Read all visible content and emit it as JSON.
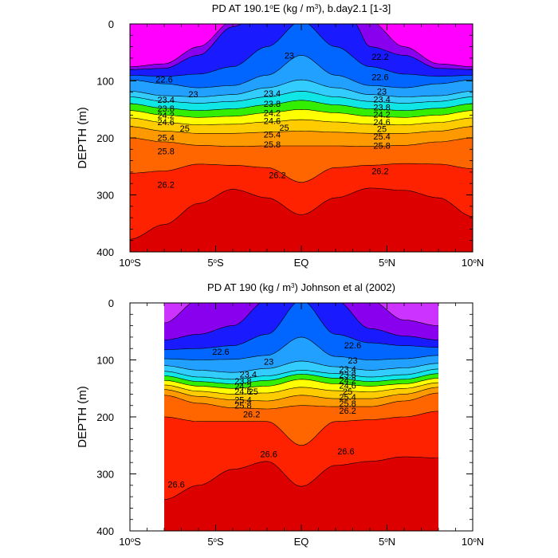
{
  "chart_data": [
    {
      "type": "heatmap",
      "title": "PD AT 190.1°E (kg / m³), b.day2.1 [1-3]",
      "title_parts": {
        "pre": "PD AT 190.1",
        "sup_deg": "o",
        "post": "E (kg / m",
        "sup3": "3",
        "tail": "), b.day2.1 [1-3]"
      },
      "ylabel": "DEPTH (m)",
      "xlim": [
        -10,
        10
      ],
      "ylim": [
        400,
        0
      ],
      "x_ticks": [
        -10,
        -5,
        0,
        5,
        10
      ],
      "x_tick_labels": [
        {
          "num": "10",
          "deg": "o",
          "hem": "S"
        },
        {
          "num": "5",
          "deg": "o",
          "hem": "S"
        },
        {
          "num": "",
          "deg": "",
          "hem": "EQ"
        },
        {
          "num": "5",
          "deg": "o",
          "hem": "N"
        },
        {
          "num": "10",
          "deg": "o",
          "hem": "N"
        }
      ],
      "y_ticks": [
        0,
        100,
        200,
        300,
        400
      ],
      "y_tick_labels": [
        "0",
        "100",
        "200",
        "300",
        "400"
      ],
      "data_extent": [
        -10,
        10
      ],
      "sigma_surface": 21.2,
      "sigma_deep": 26.8,
      "contours": [
        {
          "level": 21.8,
          "s": {
            "10": 75,
            "8": 70,
            "6": 40,
            "4": -5,
            "2": -5,
            "0": -5
          },
          "n": {
            "10": 75,
            "8": 70,
            "6": 40,
            "4": -5,
            "2": -5,
            "0": -5
          }
        },
        {
          "level": 22.2,
          "s": {
            "10": 80,
            "8": 78,
            "6": 55,
            "4": 5,
            "3": -5,
            "2": -5,
            "0": -5
          },
          "n": {
            "10": 80,
            "8": 78,
            "6": 55,
            "4": 40,
            "3": -5,
            "2": -5,
            "0": -5
          }
        },
        {
          "level": 22.6,
          "s": {
            "10": 90,
            "8": 92,
            "6": 88,
            "4": 75,
            "2": 40,
            "0": -5
          },
          "n": {
            "10": 90,
            "8": 92,
            "6": 88,
            "4": 75,
            "2": 40,
            "0": -5
          }
        },
        {
          "level": 23.0,
          "s": {
            "10": 98,
            "8": 105,
            "6": 112,
            "4": 108,
            "2": 90,
            "0": 55
          },
          "n": {
            "10": 98,
            "8": 105,
            "6": 112,
            "4": 108,
            "2": 90,
            "0": 55
          }
        },
        {
          "level": 23.4,
          "s": {
            "10": 118,
            "8": 126,
            "6": 128,
            "4": 124,
            "2": 112,
            "0": 98
          },
          "n": {
            "10": 118,
            "8": 126,
            "6": 128,
            "4": 124,
            "2": 112,
            "0": 98
          }
        },
        {
          "level": 23.8,
          "s": {
            "10": 128,
            "8": 136,
            "6": 139,
            "4": 136,
            "2": 128,
            "0": 118
          },
          "n": {
            "10": 128,
            "8": 136,
            "6": 139,
            "4": 136,
            "2": 128,
            "0": 118
          }
        },
        {
          "level": 24.2,
          "s": {
            "10": 140,
            "8": 148,
            "6": 152,
            "4": 149,
            "2": 142,
            "0": 134
          },
          "n": {
            "10": 140,
            "8": 148,
            "6": 152,
            "4": 149,
            "2": 142,
            "0": 134
          }
        },
        {
          "level": 24.6,
          "s": {
            "10": 152,
            "8": 160,
            "6": 164,
            "4": 162,
            "2": 156,
            "0": 150
          },
          "n": {
            "10": 152,
            "8": 160,
            "6": 164,
            "4": 162,
            "2": 156,
            "0": 150
          }
        },
        {
          "level": 25.0,
          "s": {
            "10": 165,
            "8": 173,
            "6": 177,
            "4": 176,
            "2": 172,
            "0": 168
          },
          "n": {
            "10": 165,
            "8": 173,
            "6": 177,
            "4": 176,
            "2": 172,
            "0": 168
          }
        },
        {
          "level": 25.4,
          "s": {
            "10": 180,
            "8": 188,
            "6": 192,
            "4": 192,
            "2": 190,
            "0": 188
          },
          "n": {
            "10": 180,
            "8": 188,
            "6": 192,
            "4": 192,
            "2": 190,
            "0": 188
          }
        },
        {
          "level": 25.8,
          "s": {
            "10": 200,
            "8": 207,
            "6": 213,
            "4": 215,
            "2": 214,
            "0": 214
          },
          "n": {
            "10": 200,
            "8": 207,
            "6": 213,
            "4": 215,
            "2": 214,
            "0": 214
          }
        },
        {
          "level": 26.2,
          "s": {
            "10": 262,
            "8": 258,
            "6": 246,
            "4": 248,
            "2": 252,
            "0": 278
          },
          "n": {
            "10": 254,
            "8": 246,
            "6": 245,
            "4": 248,
            "2": 252,
            "0": 278
          }
        },
        {
          "level": 26.6,
          "s": {
            "10": 378,
            "8": 352,
            "6": 315,
            "4": 290,
            "2": 305,
            "0": 335
          },
          "n": {
            "10": 338,
            "8": 305,
            "6": 292,
            "4": 288,
            "2": 305,
            "0": 335
          }
        }
      ],
      "labels": [
        {
          "text": "22.6",
          "x": -8.0,
          "y": 97
        },
        {
          "text": "23",
          "x": -6.3,
          "y": 123
        },
        {
          "text": "23",
          "x": -0.7,
          "y": 55
        },
        {
          "text": "22.2",
          "x": 4.6,
          "y": 57
        },
        {
          "text": "22.6",
          "x": 4.6,
          "y": 93
        },
        {
          "text": "23.4",
          "x": -7.9,
          "y": 133
        },
        {
          "text": "23.8",
          "x": -7.9,
          "y": 148
        },
        {
          "text": "24.2",
          "x": -7.9,
          "y": 160
        },
        {
          "text": "24.6",
          "x": -7.9,
          "y": 172
        },
        {
          "text": "23.4",
          "x": -1.7,
          "y": 122
        },
        {
          "text": "23.8",
          "x": -1.7,
          "y": 140
        },
        {
          "text": "24.2",
          "x": -1.7,
          "y": 156
        },
        {
          "text": "24.6",
          "x": -1.7,
          "y": 170
        },
        {
          "text": "23",
          "x": 4.7,
          "y": 118
        },
        {
          "text": "23.4",
          "x": 4.7,
          "y": 132
        },
        {
          "text": "23.8",
          "x": 4.7,
          "y": 146
        },
        {
          "text": "24.2",
          "x": 4.7,
          "y": 159
        },
        {
          "text": "24.6",
          "x": 4.7,
          "y": 172
        },
        {
          "text": "25",
          "x": -6.8,
          "y": 183
        },
        {
          "text": "25",
          "x": -1.0,
          "y": 182
        },
        {
          "text": "25",
          "x": 4.7,
          "y": 184
        },
        {
          "text": "25.4",
          "x": -7.9,
          "y": 199
        },
        {
          "text": "25.4",
          "x": -1.7,
          "y": 194
        },
        {
          "text": "25.4",
          "x": 4.7,
          "y": 197
        },
        {
          "text": "25.8",
          "x": -7.9,
          "y": 223
        },
        {
          "text": "25.8",
          "x": -1.7,
          "y": 211
        },
        {
          "text": "25.8",
          "x": 4.7,
          "y": 213
        },
        {
          "text": "26.2",
          "x": -1.4,
          "y": 265
        },
        {
          "text": "26.2",
          "x": 4.6,
          "y": 258
        },
        {
          "text": "26.2",
          "x": -7.9,
          "y": 282
        }
      ]
    },
    {
      "type": "heatmap",
      "title": "PD AT 190 (kg / m³) Johnson et al (2002)",
      "title_parts": {
        "pre": "PD AT 190 (kg / m",
        "sup_deg": "",
        "post": "",
        "sup3": "3",
        "tail": ") Johnson et al (2002)"
      },
      "ylabel": "DEPTH (m)",
      "xlim": [
        -10,
        10
      ],
      "ylim": [
        400,
        0
      ],
      "x_ticks": [
        -10,
        -5,
        0,
        5,
        10
      ],
      "x_tick_labels": [
        {
          "num": "10",
          "deg": "o",
          "hem": "S"
        },
        {
          "num": "5",
          "deg": "o",
          "hem": "S"
        },
        {
          "num": "",
          "deg": "",
          "hem": "EQ"
        },
        {
          "num": "5",
          "deg": "o",
          "hem": "N"
        },
        {
          "num": "10",
          "deg": "o",
          "hem": "N"
        }
      ],
      "y_ticks": [
        0,
        100,
        200,
        300,
        400
      ],
      "y_tick_labels": [
        "0",
        "100",
        "200",
        "300",
        "400"
      ],
      "data_extent": [
        -8,
        8
      ],
      "sigma_surface": 21.6,
      "sigma_deep": 27.0,
      "contours": [
        {
          "level": 21.8,
          "s": {
            "8": 35,
            "6": -5,
            "4": -5,
            "2": -5,
            "0": -5
          },
          "n": {
            "8": 40,
            "6": 30,
            "4": -5,
            "2": -5,
            "0": -5
          }
        },
        {
          "level": 22.2,
          "s": {
            "8": 65,
            "6": 55,
            "4": 40,
            "2": -5,
            "0": -5
          },
          "n": {
            "8": 65,
            "6": 58,
            "4": 45,
            "2": -5,
            "0": -5
          }
        },
        {
          "level": 22.6,
          "s": {
            "8": 82,
            "6": 80,
            "4": 75,
            "2": 55,
            "0": -5
          },
          "n": {
            "8": 78,
            "6": 75,
            "4": 70,
            "2": 55,
            "0": -5
          }
        },
        {
          "level": 23.0,
          "s": {
            "8": 98,
            "6": 100,
            "4": 99,
            "2": 92,
            "0": 60
          },
          "n": {
            "8": 92,
            "6": 98,
            "4": 100,
            "2": 94,
            "0": 60
          }
        },
        {
          "level": 23.4,
          "s": {
            "8": 110,
            "6": 118,
            "4": 122,
            "2": 115,
            "0": 102
          },
          "n": {
            "8": 106,
            "6": 114,
            "4": 118,
            "2": 112,
            "0": 102
          }
        },
        {
          "level": 23.8,
          "s": {
            "8": 120,
            "6": 130,
            "4": 134,
            "2": 128,
            "0": 118
          },
          "n": {
            "8": 116,
            "6": 126,
            "4": 130,
            "2": 124,
            "0": 118
          }
        },
        {
          "level": 24.2,
          "s": {
            "8": 128,
            "6": 138,
            "4": 142,
            "2": 136,
            "0": 125
          },
          "n": {
            "8": 124,
            "6": 134,
            "4": 138,
            "2": 132,
            "0": 125
          }
        },
        {
          "level": 24.6,
          "s": {
            "8": 136,
            "6": 146,
            "4": 150,
            "2": 146,
            "0": 134
          },
          "n": {
            "8": 132,
            "6": 142,
            "4": 146,
            "2": 142,
            "0": 134
          }
        },
        {
          "level": 25.0,
          "s": {
            "8": 144,
            "6": 155,
            "4": 160,
            "2": 158,
            "0": 148
          },
          "n": {
            "8": 140,
            "6": 150,
            "4": 156,
            "2": 154,
            "0": 148
          }
        },
        {
          "level": 25.4,
          "s": {
            "8": 152,
            "6": 164,
            "4": 170,
            "2": 172,
            "0": 162
          },
          "n": {
            "8": 148,
            "6": 160,
            "4": 168,
            "2": 168,
            "0": 162
          }
        },
        {
          "level": 25.8,
          "s": {
            "8": 162,
            "6": 176,
            "4": 184,
            "2": 186,
            "0": 180
          },
          "n": {
            "8": 158,
            "6": 172,
            "4": 182,
            "2": 182,
            "0": 180
          }
        },
        {
          "level": 26.2,
          "s": {
            "8": 200,
            "6": 208,
            "4": 208,
            "2": 208,
            "0": 250
          },
          "n": {
            "8": 190,
            "6": 200,
            "4": 205,
            "2": 208,
            "0": 250
          }
        },
        {
          "level": 26.6,
          "s": {
            "8": 345,
            "6": 320,
            "4": 292,
            "2": 278,
            "0": 322
          },
          "n": {
            "8": 272,
            "6": 270,
            "4": 278,
            "2": 285,
            "0": 322
          }
        }
      ],
      "labels": [
        {
          "text": "22.6",
          "x": -4.7,
          "y": 85
        },
        {
          "text": "23",
          "x": -1.9,
          "y": 103
        },
        {
          "text": "22.6",
          "x": 3.0,
          "y": 74
        },
        {
          "text": "23",
          "x": 3.0,
          "y": 101
        },
        {
          "text": "23.4",
          "x": -3.1,
          "y": 125
        },
        {
          "text": "23.8",
          "x": -3.4,
          "y": 137
        },
        {
          "text": "24.2",
          "x": -3.4,
          "y": 146
        },
        {
          "text": "24.6",
          "x": -3.4,
          "y": 155
        },
        {
          "text": "25",
          "x": -2.8,
          "y": 155
        },
        {
          "text": "25.4",
          "x": -3.4,
          "y": 170
        },
        {
          "text": "25.8",
          "x": -3.4,
          "y": 180
        },
        {
          "text": "26.2",
          "x": -2.9,
          "y": 195
        },
        {
          "text": "23.4",
          "x": 2.7,
          "y": 116
        },
        {
          "text": "23.8",
          "x": 2.7,
          "y": 126
        },
        {
          "text": "24.2",
          "x": 2.7,
          "y": 136
        },
        {
          "text": "24.6",
          "x": 2.7,
          "y": 145
        },
        {
          "text": "25",
          "x": 2.7,
          "y": 155
        },
        {
          "text": "25.4",
          "x": 2.7,
          "y": 165
        },
        {
          "text": "25.8",
          "x": 2.7,
          "y": 176
        },
        {
          "text": "26.2",
          "x": 2.7,
          "y": 189
        },
        {
          "text": "26.6",
          "x": -1.9,
          "y": 265
        },
        {
          "text": "26.6",
          "x": 2.6,
          "y": 260
        },
        {
          "text": "26.6",
          "x": -7.3,
          "y": 318
        }
      ]
    }
  ]
}
